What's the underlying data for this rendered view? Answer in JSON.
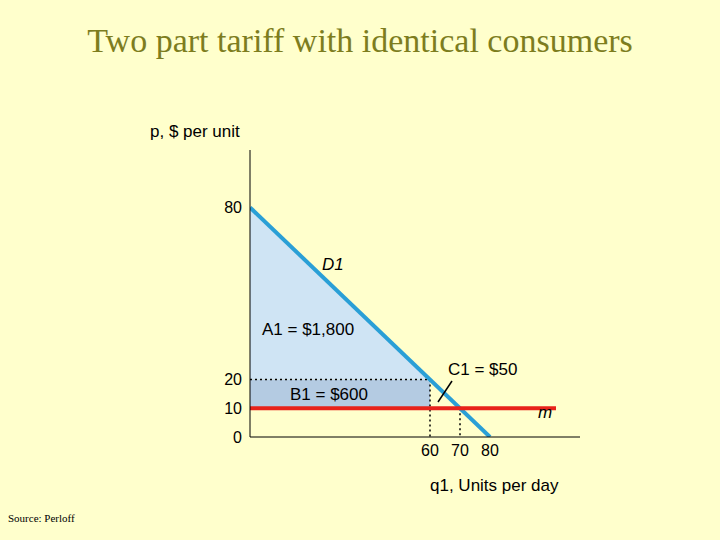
{
  "chart_data": {
    "type": "line",
    "title": "Two part tariff with identical consumers",
    "x_label": "q1, Units per day",
    "y_label": "p, $ per unit",
    "source": "Source: Perloff",
    "xlim": [
      0,
      110
    ],
    "xticks": [
      60,
      70,
      80
    ],
    "ylim": [
      0,
      100
    ],
    "yticks": [
      0,
      10,
      20,
      80
    ],
    "grid": false,
    "series": [
      {
        "name": "A1 = $1,800",
        "type": "area",
        "color": "#cfe4f4",
        "x": [
          0,
          60
        ],
        "values": [
          80,
          20
        ],
        "lower": [
          20,
          20
        ]
      },
      {
        "name": "B1 = $600",
        "type": "area",
        "color": "#b4cbe2",
        "x": [
          0,
          60
        ],
        "values": [
          20,
          20
        ],
        "lower": [
          10,
          10
        ]
      },
      {
        "type": "line",
        "line_style": "dotted",
        "color": "#000000",
        "x": [
          0,
          60
        ],
        "values": [
          20,
          20
        ]
      },
      {
        "type": "line",
        "line_style": "dotted",
        "color": "#000000",
        "x": [
          60,
          60
        ],
        "values": [
          20,
          0
        ]
      },
      {
        "type": "line",
        "line_style": "dotted",
        "color": "#000000",
        "x": [
          70,
          70
        ],
        "values": [
          10,
          0
        ]
      },
      {
        "name": "D1",
        "type": "line",
        "line_style": "solid",
        "color": "#2a9fd6",
        "x": [
          0,
          80
        ],
        "values": [
          80,
          0
        ]
      },
      {
        "name": "m",
        "type": "line",
        "line_style": "solid",
        "color": "#e8221a",
        "x": [
          0,
          102
        ],
        "values": [
          10,
          10
        ]
      },
      {
        "name": "C1 = $50",
        "type": "line",
        "line_style": "solid",
        "color": "#000000",
        "x": [],
        "values": []
      }
    ]
  }
}
